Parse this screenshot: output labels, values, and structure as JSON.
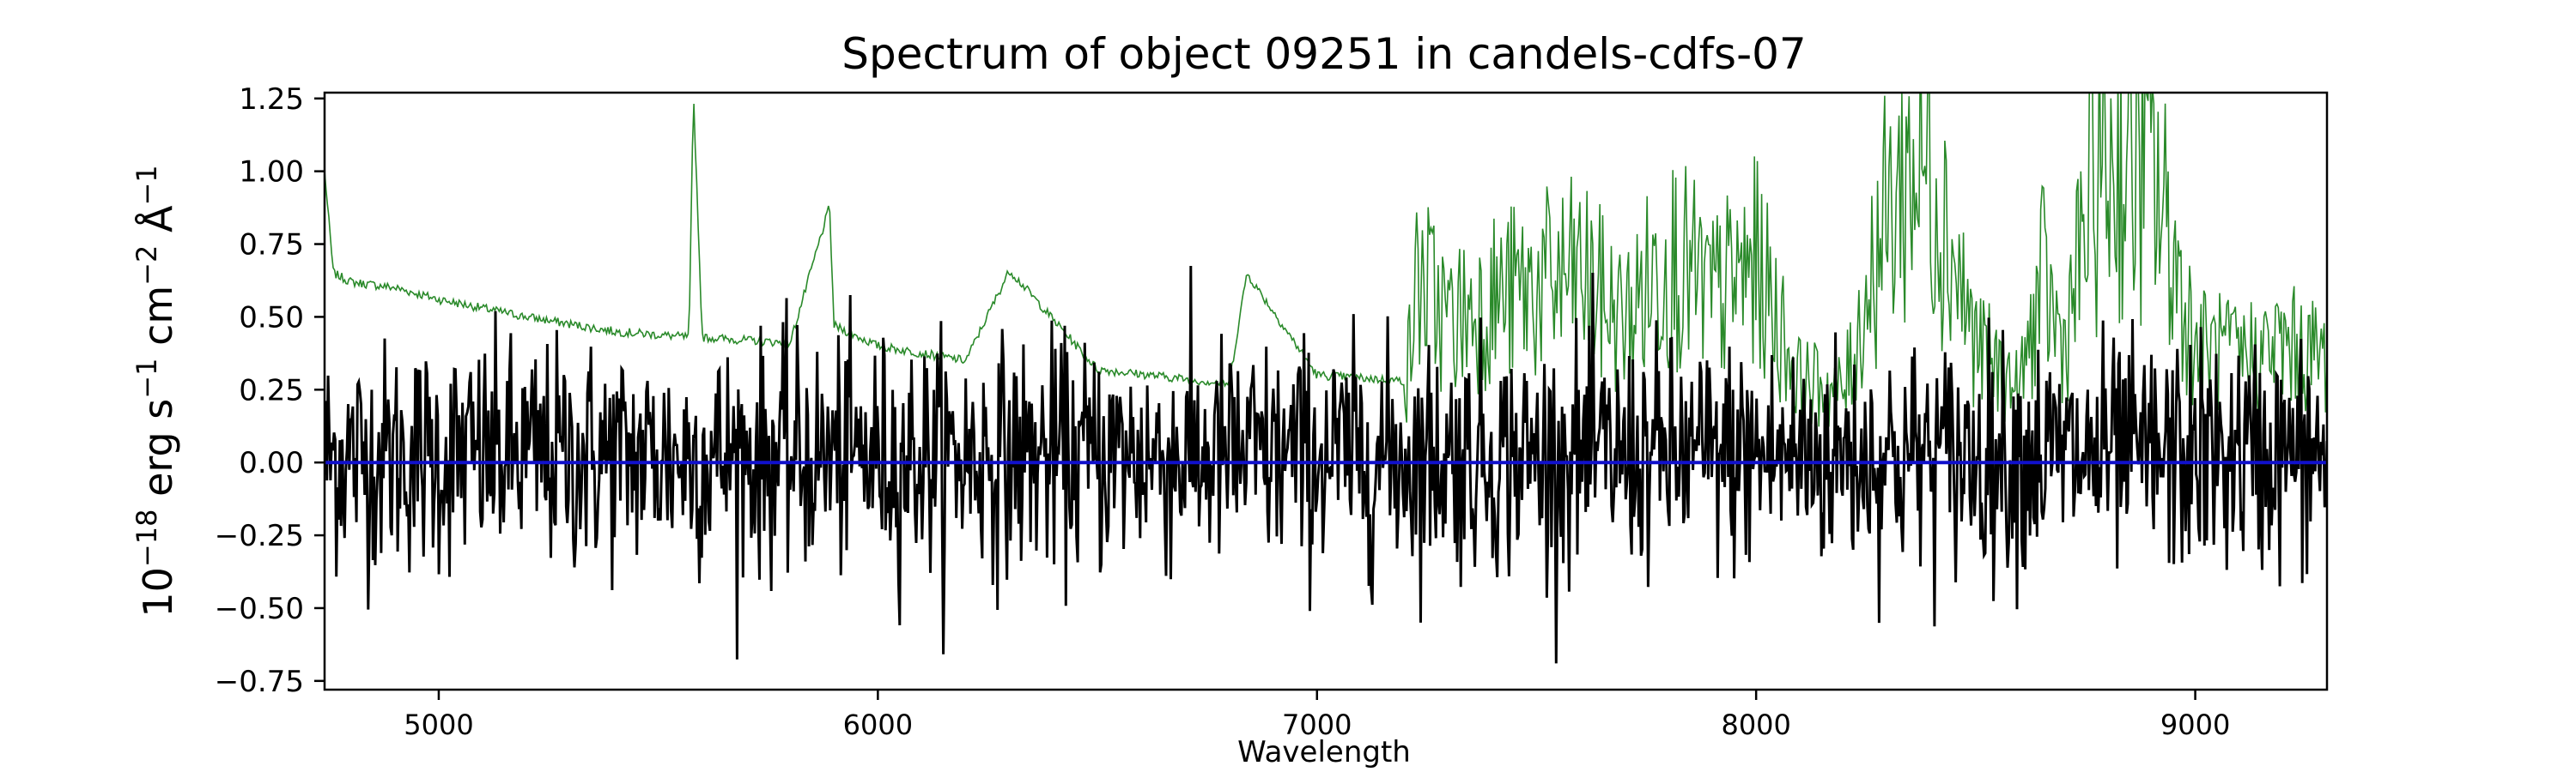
{
  "chart_data": {
    "type": "line",
    "title": "Spectrum of object 09251 in candels-cdfs-07",
    "xlabel": "Wavelength",
    "ylabel_parts": {
      "base": "10",
      "exp1": "−18",
      "erg": " erg s",
      "exp2": "−1",
      "cm": " cm",
      "exp3": "−2",
      "ang": " Å",
      "exp4": "−1"
    },
    "xlim": [
      4740,
      9300
    ],
    "ylim": [
      -0.78,
      1.27
    ],
    "x_ticks": [
      5000,
      6000,
      7000,
      8000,
      9000
    ],
    "x_tick_labels": [
      "5000",
      "6000",
      "7000",
      "8000",
      "9000"
    ],
    "y_ticks": [
      -0.75,
      -0.5,
      -0.25,
      0.0,
      0.25,
      0.5,
      0.75,
      1.0,
      1.25
    ],
    "y_tick_labels": [
      "−0.75",
      "−0.50",
      "−0.25",
      "0.00",
      "0.25",
      "0.50",
      "0.75",
      "1.00",
      "1.25"
    ],
    "grid": false,
    "series": [
      {
        "color": "#000000",
        "x_range": [
          4740,
          9300
        ],
        "n_points": 1700,
        "approx_mean": 0.02,
        "approx_std": 0.2,
        "min": -0.69,
        "max": 0.85
      },
      {
        "color": "#2a8a2a",
        "x": [
          4740,
          4760,
          4800,
          4900,
          5000,
          5200,
          5400,
          5570,
          5580,
          5600,
          5800,
          5890,
          5900,
          6000,
          6200,
          6300,
          6500,
          6800,
          6840,
          7000,
          7200,
          7230,
          7300,
          7400,
          7500,
          7600,
          7700,
          7800,
          7900,
          8000,
          8100,
          8200,
          8280,
          8350,
          8400,
          8500,
          8600,
          8650,
          8700,
          8780,
          8800,
          8900,
          9000,
          9100,
          9200,
          9300
        ],
        "y": [
          1.0,
          0.65,
          0.62,
          0.6,
          0.56,
          0.5,
          0.45,
          0.43,
          1.27,
          0.43,
          0.41,
          0.88,
          0.47,
          0.4,
          0.35,
          0.66,
          0.32,
          0.27,
          0.65,
          0.3,
          0.28,
          0.8,
          0.6,
          0.7,
          0.75,
          0.8,
          0.6,
          0.9,
          0.7,
          0.85,
          0.35,
          0.3,
          0.95,
          1.27,
          1.27,
          0.5,
          0.3,
          0.78,
          0.5,
          1.27,
          1.27,
          1.27,
          0.5,
          0.45,
          0.5,
          0.45
        ]
      },
      {
        "color": "#1010cc",
        "x": [
          4740,
          9300
        ],
        "y": [
          0.0,
          0.0
        ]
      }
    ]
  }
}
